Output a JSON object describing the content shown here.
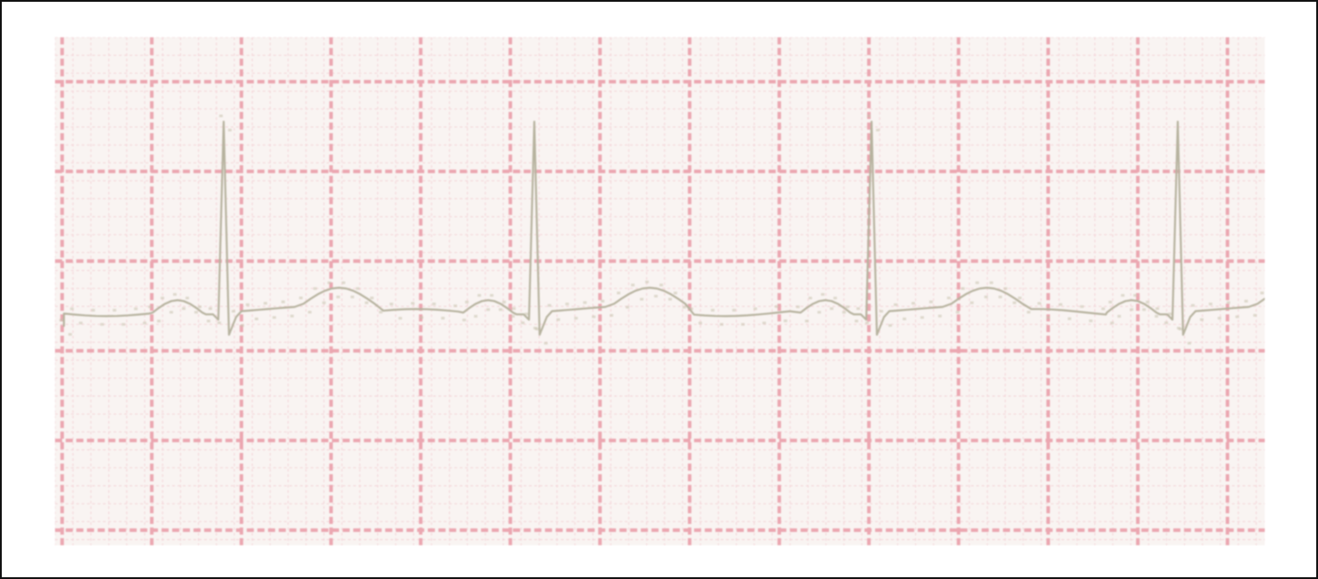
{
  "colors": {
    "frame": "#111111",
    "paper": "#f9f4f2",
    "grid_major": "#eba7b1",
    "grid_minor": "#f3d2d6",
    "trace": "#b7b39f",
    "trace_dot": "#c9c3ae"
  },
  "strip": {
    "type": "ecg-rhythm-strip",
    "grid": "visible",
    "beats": 4
  }
}
